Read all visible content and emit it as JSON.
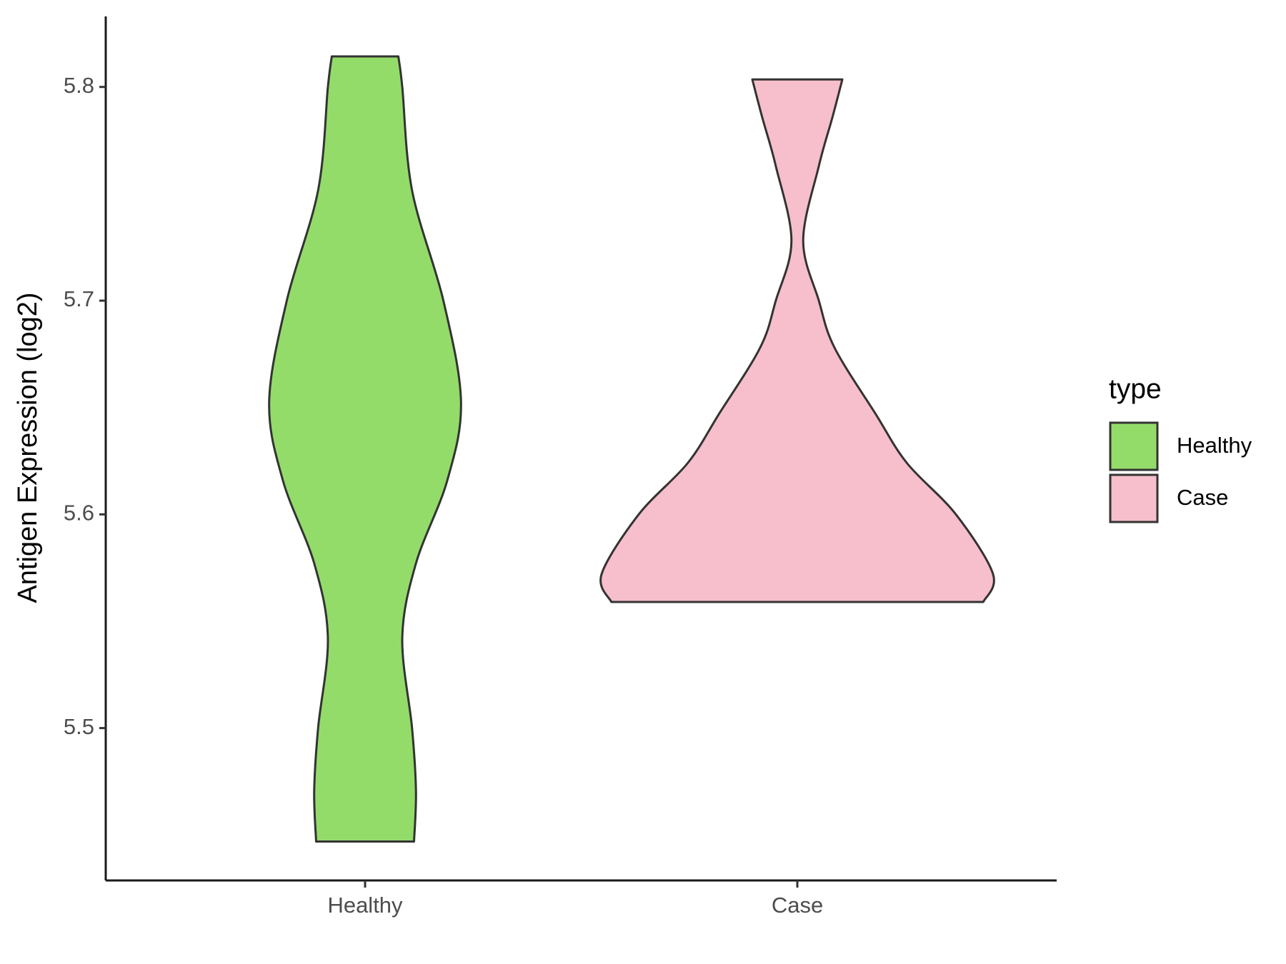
{
  "chart_data": {
    "type": "violin",
    "y_label": "Antigen Expression (log2)",
    "legend_title": "type",
    "categories": [
      "Healthy",
      "Case"
    ],
    "ylim": [
      5.4287,
      5.833
    ],
    "yticks": [
      5.5,
      5.6,
      5.7,
      5.8
    ],
    "series": [
      {
        "name": "Healthy",
        "color": "#93dc6a",
        "y": [
          5.8143,
          5.8,
          5.7516,
          5.7,
          5.6527,
          5.6159,
          5.5771,
          5.5422,
          5.5,
          5.4705,
          5.4469
        ],
        "density": [
          0.17,
          0.19,
          0.24,
          0.4,
          0.49,
          0.42,
          0.26,
          0.19,
          0.24,
          0.26,
          0.25
        ]
      },
      {
        "name": "Case",
        "color": "#f7bfcb",
        "y": [
          5.8035,
          5.786,
          5.763,
          5.728,
          5.7,
          5.678,
          5.647,
          5.624,
          5.6,
          5.572,
          5.559
        ],
        "density": [
          0.23,
          0.18,
          0.11,
          0.03,
          0.11,
          0.19,
          0.4,
          0.56,
          0.81,
          1.0,
          0.95
        ]
      }
    ]
  }
}
